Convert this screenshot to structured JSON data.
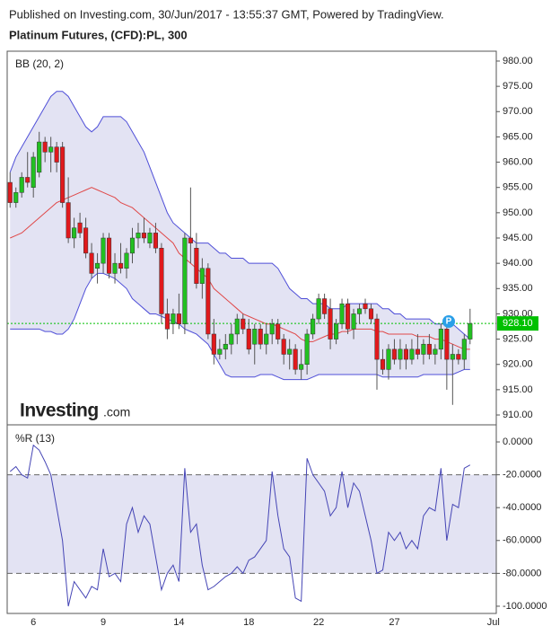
{
  "header": "Published on Investing.com, 30/Jun/2017 - 13:55:37 GMT, Powered by TradingView.",
  "chart_data": [
    {
      "type": "candlestick",
      "title": "Platinum Futures, (CFD):PL, 300",
      "indicator": "BB (20, 2)",
      "logo": [
        "Investing",
        ".com"
      ],
      "annotation": "P",
      "up_color": "#22c021",
      "down_color": "#e0191c",
      "categories": [
        null,
        null,
        null,
        null,
        "6",
        null,
        null,
        null,
        null,
        null,
        null,
        null,
        null,
        null,
        null,
        null,
        "9",
        null,
        null,
        null,
        null,
        null,
        null,
        null,
        null,
        null,
        null,
        null,
        null,
        "14",
        null,
        null,
        null,
        null,
        null,
        null,
        null,
        null,
        null,
        null,
        null,
        "18",
        null,
        null,
        null,
        null,
        null,
        null,
        null,
        null,
        null,
        null,
        null,
        "22",
        null,
        null,
        null,
        null,
        null,
        null,
        null,
        null,
        null,
        null,
        null,
        null,
        "27",
        null,
        null,
        null,
        null,
        null,
        null,
        null,
        null,
        null,
        null,
        null,
        null,
        null,
        null,
        null,
        null,
        "Jul"
      ],
      "open": [
        956,
        952,
        954,
        957,
        955,
        958,
        964,
        962,
        963,
        963,
        952,
        945,
        948,
        947,
        942,
        939,
        940,
        945,
        938,
        940,
        939,
        942,
        945,
        946,
        944,
        946,
        943,
        930,
        928,
        930,
        928,
        945,
        943,
        936,
        939,
        926,
        922,
        923,
        924,
        926,
        929,
        927,
        924,
        927,
        924,
        926,
        928,
        925,
        922,
        923,
        919,
        920,
        926,
        929,
        933,
        931,
        925,
        928,
        932,
        927,
        930,
        932,
        931,
        929,
        921,
        919,
        923,
        921,
        923,
        921,
        923,
        922,
        924,
        922,
        923,
        927,
        921,
        922,
        921,
        925,
        null,
        null,
        null,
        null
      ],
      "high": [
        958,
        955,
        958,
        962,
        962,
        966,
        965,
        965,
        964,
        964,
        957,
        949,
        950,
        949,
        944,
        942,
        946,
        946,
        942,
        944,
        943,
        947,
        948,
        949,
        947,
        948,
        944,
        933,
        931,
        934,
        946,
        955,
        946,
        941,
        940,
        929,
        925,
        926,
        928,
        930,
        930,
        929,
        928,
        928,
        928,
        929,
        929,
        926,
        925,
        924,
        923,
        927,
        930,
        934,
        934,
        933,
        929,
        933,
        933,
        931,
        932,
        933,
        932,
        930,
        923,
        924,
        925,
        925,
        924,
        925,
        926,
        925,
        926,
        924,
        928,
        928,
        924,
        923,
        926,
        931,
        null,
        null,
        null,
        null
      ],
      "low": [
        951,
        951,
        953,
        955,
        953,
        957,
        960,
        958,
        958,
        951,
        944,
        943,
        945,
        941,
        937,
        936,
        938,
        937,
        936,
        938,
        937,
        940,
        943,
        944,
        943,
        942,
        928,
        925,
        926,
        927,
        926,
        940,
        935,
        933,
        925,
        920,
        921,
        921,
        922,
        924,
        926,
        922,
        920,
        923,
        922,
        924,
        924,
        920,
        919,
        918,
        917,
        918,
        925,
        928,
        929,
        923,
        924,
        927,
        926,
        925,
        928,
        930,
        928,
        915,
        918,
        917,
        920,
        919,
        919,
        920,
        921,
        920,
        921,
        920,
        921,
        915,
        912,
        920,
        919,
        924,
        null,
        null,
        null,
        null
      ],
      "close": [
        952,
        954,
        957,
        956,
        961,
        964,
        962,
        963,
        960,
        952,
        945,
        947,
        946,
        942,
        938,
        940,
        945,
        938,
        940,
        939,
        942,
        945,
        946,
        945,
        946,
        943,
        930,
        927,
        930,
        928,
        945,
        944,
        936,
        939,
        926,
        922,
        923,
        924,
        926,
        929,
        927,
        923,
        927,
        924,
        926,
        928,
        925,
        922,
        923,
        919,
        920,
        926,
        929,
        933,
        930,
        925,
        928,
        932,
        927,
        930,
        931,
        931,
        929,
        921,
        919,
        923,
        921,
        923,
        921,
        923,
        922,
        924,
        922,
        923,
        927,
        921,
        922,
        921,
        925,
        928.1,
        null,
        null,
        null,
        null
      ],
      "last_price": {
        "value": 928.1,
        "label": "928.10",
        "color": "#00c000"
      },
      "bands": {
        "color": "#4f4fd8",
        "middle_color": "#e04848",
        "fill": "#e3e3f3",
        "upper": [
          958,
          961,
          963,
          965,
          967,
          969,
          971,
          973,
          974,
          974,
          973,
          971,
          969,
          967,
          966,
          967,
          969,
          969,
          969,
          969,
          968,
          966,
          964,
          962,
          959,
          956,
          953,
          950,
          948,
          947,
          946,
          945,
          944,
          944,
          944,
          943,
          942,
          942,
          941,
          941,
          941,
          940,
          940,
          940,
          940,
          940,
          939,
          937,
          935,
          934,
          933,
          933,
          932,
          932,
          932,
          931,
          931,
          931,
          932,
          932,
          932,
          932,
          932,
          932,
          931,
          931,
          930,
          930,
          929,
          929,
          929,
          929,
          929,
          928,
          928,
          928,
          928,
          927,
          926,
          925,
          null,
          null,
          null,
          null
        ],
        "middle": [
          945,
          945.5,
          946,
          947,
          948,
          949,
          950,
          951,
          952,
          952.5,
          953,
          953.5,
          954,
          954.5,
          955,
          954.5,
          954,
          953.5,
          953,
          952,
          951.5,
          951,
          950,
          949,
          948,
          947,
          946,
          945,
          944,
          942,
          941,
          940,
          939,
          938,
          937,
          935,
          934,
          933,
          932,
          931,
          930,
          929.5,
          929,
          928.5,
          928,
          928,
          927.5,
          927,
          926.5,
          926,
          925,
          924.5,
          924.5,
          925,
          925.5,
          926,
          926,
          926.5,
          926.5,
          927,
          927,
          927,
          927,
          926.5,
          926.5,
          926,
          926,
          926,
          926,
          926,
          925.5,
          925.5,
          925.5,
          925,
          925,
          924.5,
          924,
          923.5,
          923,
          923,
          null,
          null,
          null,
          null
        ],
        "lower": [
          927,
          927,
          927,
          927,
          927,
          927,
          926.5,
          926.5,
          926,
          926,
          927,
          929,
          932,
          935,
          937,
          938,
          938,
          937.5,
          937,
          936,
          935,
          933,
          932,
          931,
          930,
          930,
          929.5,
          929,
          928.5,
          928,
          927,
          926.5,
          926,
          925,
          924,
          922,
          920,
          918,
          917.5,
          917.5,
          917.5,
          917.5,
          917.5,
          918,
          918,
          918,
          917.5,
          917,
          917,
          917,
          917,
          917,
          917.5,
          918,
          918,
          918,
          918,
          918,
          918,
          918,
          918,
          918,
          918,
          918,
          917.5,
          917.5,
          917.5,
          917.5,
          917.5,
          917.5,
          917.5,
          918,
          918,
          918,
          918,
          918,
          918,
          918.5,
          919,
          919,
          null,
          null,
          null,
          null
        ]
      },
      "ylim": [
        908.05,
        981.95
      ],
      "yticks": [
        {
          "value": 910,
          "label": "910.00"
        },
        {
          "value": 915,
          "label": "915.00"
        },
        {
          "value": 920,
          "label": "920.00"
        },
        {
          "value": 925,
          "label": "925.00"
        },
        {
          "value": 930,
          "label": "930.00"
        },
        {
          "value": 935,
          "label": "935.00"
        },
        {
          "value": 940,
          "label": "940.00"
        },
        {
          "value": 945,
          "label": "945.00"
        },
        {
          "value": 950,
          "label": "950.00"
        },
        {
          "value": 955,
          "label": "955.00"
        },
        {
          "value": 960,
          "label": "960.00"
        },
        {
          "value": 965,
          "label": "965.00"
        },
        {
          "value": 970,
          "label": "970.00"
        },
        {
          "value": 975,
          "label": "975.00"
        },
        {
          "value": 980,
          "label": "980.00"
        }
      ]
    },
    {
      "type": "line",
      "title": "%R (13)",
      "color": "#4545b5",
      "levels": [
        -20,
        -80
      ],
      "level_fill": "#e3e3f3",
      "values": [
        -18,
        -15,
        -20,
        -22,
        -2,
        -5,
        -12,
        -20,
        -40,
        -60,
        -100,
        -85,
        -90,
        -95,
        -88,
        -90,
        -65,
        -82,
        -80,
        -85,
        -50,
        -40,
        -55,
        -45,
        -50,
        -70,
        -90,
        -80,
        -75,
        -85,
        -16,
        -55,
        -50,
        -75,
        -90,
        -88,
        -85,
        -82,
        -80,
        -76,
        -80,
        -72,
        -70,
        -65,
        -60,
        -18,
        -45,
        -65,
        -70,
        -95,
        -97,
        -10,
        -20,
        -25,
        -30,
        -45,
        -40,
        -18,
        -40,
        -25,
        -30,
        -45,
        -60,
        -80,
        -78,
        -55,
        -60,
        -55,
        -65,
        -60,
        -65,
        -45,
        -40,
        -42,
        -16,
        -60,
        -38,
        -40,
        -16,
        -14,
        null,
        null,
        null,
        null
      ],
      "ylim": [
        -104.4,
        10.4
      ],
      "yticks": [
        {
          "value": 0,
          "label": "0.0000"
        },
        {
          "value": -20,
          "label": "-20.0000"
        },
        {
          "value": -40,
          "label": "-40.0000"
        },
        {
          "value": -60,
          "label": "-60.0000"
        },
        {
          "value": -80,
          "label": "-80.0000"
        },
        {
          "value": -100,
          "label": "-100.0000"
        }
      ]
    }
  ]
}
